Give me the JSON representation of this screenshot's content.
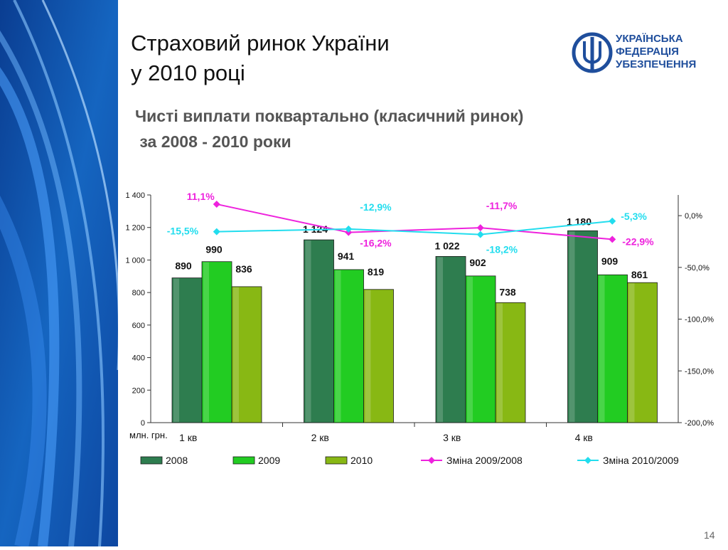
{
  "slide": {
    "title_line1": "Страховий ринок України",
    "title_line2": "у 2010 році",
    "subtitle_line1": "Чисті виплати поквартально (класичний ринок)",
    "subtitle_line2": " за 2008 - 2010 роки",
    "page_number": "14"
  },
  "logo": {
    "line1": "УКРАЇНСЬКА",
    "line2": "ФЕДЕРАЦІЯ",
    "line3": "УБЕЗПЕЧЕННЯ",
    "color": "#1f4e9c"
  },
  "chart_data": {
    "type": "bar",
    "unit_label": "млн. грн.",
    "categories": [
      "1 кв",
      "2 кв",
      "3 кв",
      "4 кв"
    ],
    "ylim": [
      0,
      1400
    ],
    "yticks": [
      0,
      200,
      400,
      600,
      800,
      1000,
      1200,
      1400
    ],
    "ytick_labels": [
      "0",
      "200",
      "400",
      "600",
      "800",
      "1 000",
      "1 200",
      "1 400"
    ],
    "y2lim": [
      -200,
      20
    ],
    "y2ticks": [
      0,
      -50,
      -100,
      -150,
      -200
    ],
    "y2tick_labels": [
      "0,0%",
      "-50,0%",
      "-100,0%",
      "-150,0%",
      "-200,0%"
    ],
    "series": [
      {
        "name": "2008",
        "kind": "bar",
        "color": "#2e7d4f",
        "values": [
          890,
          1124,
          1022,
          1180
        ],
        "labels": [
          "890",
          "1 124",
          "1 022",
          "1 180"
        ]
      },
      {
        "name": "2009",
        "kind": "bar",
        "color": "#22cc22",
        "values": [
          990,
          941,
          902,
          909
        ],
        "labels": [
          "990",
          "941",
          "902",
          "909"
        ]
      },
      {
        "name": "2010",
        "kind": "bar",
        "color": "#88b814",
        "values": [
          836,
          819,
          738,
          861
        ],
        "labels": [
          "836",
          "819",
          "738",
          "861"
        ]
      }
    ],
    "line_series": [
      {
        "name": "Зміна 2009/2008",
        "color": "#ee22dd",
        "values": [
          11.1,
          -16.2,
          -11.7,
          -22.9
        ],
        "labels": [
          "11,1%",
          "-16,2%",
          "-11,7%",
          "-22,9%"
        ]
      },
      {
        "name": "Зміна 2010/2009",
        "color": "#22ddee",
        "values": [
          -15.5,
          -12.9,
          -18.2,
          -5.3
        ],
        "labels": [
          "-15,5%",
          "-12,9%",
          "-18,2%",
          "-5,3%"
        ]
      }
    ],
    "legend_position": "bottom",
    "grid": false
  }
}
